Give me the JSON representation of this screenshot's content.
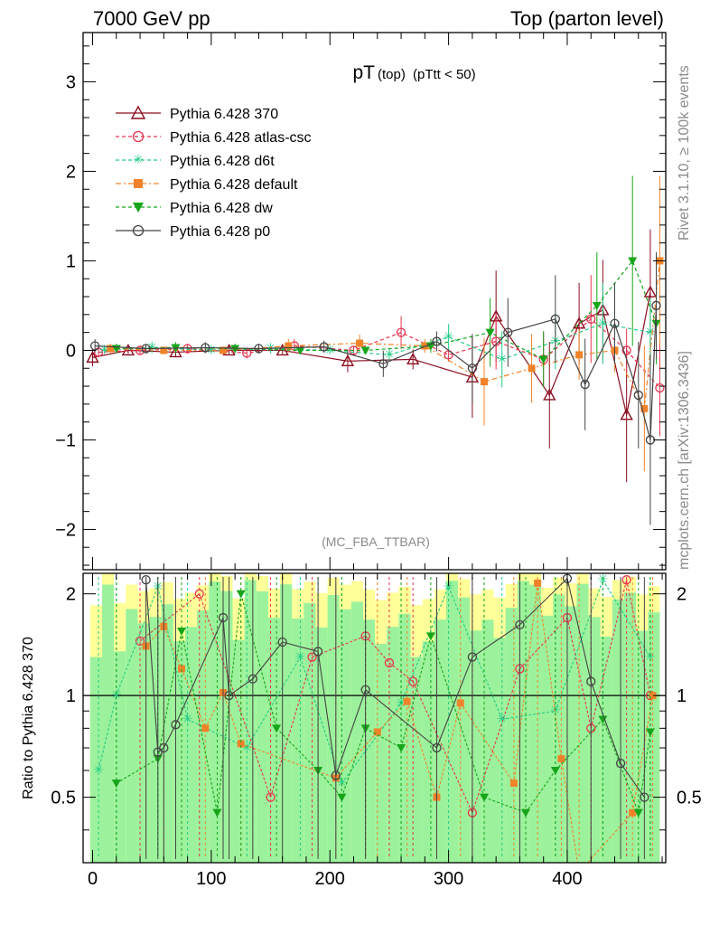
{
  "header": {
    "left": "7000 GeV pp",
    "right": "Top (parton level)"
  },
  "title": {
    "main": "pT",
    "sub1": "(top)",
    "sub2": "(pTtt < 50)"
  },
  "watermark": "(MC_FBA_TTBAR)",
  "side_text": {
    "rivet": "Rivet 3.1.10, ≥ 100k events",
    "mcplots": "mcplots.cern.ch [arXiv:1306.3436]"
  },
  "ratio_ylabel": "Ratio to Pythia 6.428 370",
  "colors": {
    "band_green": "#9cf29c",
    "band_yellow": "#ffff99"
  },
  "chart_data": [
    {
      "type": "line",
      "panel": "main",
      "xlim": [
        -8,
        483
      ],
      "ylim": [
        -2.45,
        3.55
      ],
      "yticks": [
        -2,
        -1,
        0,
        1,
        2,
        3
      ],
      "ytick_labels": [
        "−2",
        "−1",
        "0",
        "1",
        "2",
        "3"
      ],
      "legend_position": "top-left",
      "series": [
        {
          "name": "Pythia 6.428 370",
          "color": "#8b0d1f",
          "marker": "triangle-open",
          "dash": "solid",
          "x": [
            0,
            30,
            70,
            115,
            160,
            215,
            270,
            320,
            340,
            385,
            410,
            430,
            450,
            470
          ],
          "y": [
            -0.08,
            0.0,
            -0.02,
            0.0,
            0.0,
            -0.12,
            -0.1,
            -0.3,
            0.38,
            -0.5,
            0.3,
            0.45,
            -0.72,
            0.65
          ]
        },
        {
          "name": "Pythia 6.428 atlas-csc",
          "color": "#e8334f",
          "marker": "circle-open",
          "dash": "dashed",
          "x": [
            5,
            40,
            80,
            130,
            170,
            220,
            260,
            300,
            340,
            380,
            420,
            450,
            478
          ],
          "y": [
            -0.02,
            0.0,
            0.02,
            -0.03,
            0.05,
            0.0,
            0.2,
            -0.05,
            0.1,
            -0.1,
            0.35,
            0.0,
            -0.42
          ]
        },
        {
          "name": "Pythia 6.428 d6t",
          "color": "#22cc88",
          "marker": "star",
          "dash": "dashed",
          "x": [
            10,
            50,
            100,
            150,
            200,
            250,
            300,
            345,
            390,
            430,
            470
          ],
          "y": [
            0.0,
            0.03,
            0.0,
            0.02,
            0.0,
            -0.05,
            0.15,
            -0.1,
            0.1,
            0.3,
            0.2
          ]
        },
        {
          "name": "Pythia 6.428 default",
          "color": "#f0832a",
          "marker": "square",
          "dash": "dashdot",
          "x": [
            15,
            60,
            110,
            165,
            225,
            280,
            330,
            370,
            410,
            440,
            465,
            478
          ],
          "y": [
            0.02,
            0.0,
            0.0,
            0.05,
            0.08,
            0.05,
            -0.35,
            -0.2,
            -0.05,
            0.0,
            -0.65,
            1.0
          ]
        },
        {
          "name": "Pythia 6.428 dw",
          "color": "#17a51a",
          "marker": "triangle-down",
          "dash": "dashed",
          "x": [
            20,
            70,
            120,
            175,
            230,
            285,
            335,
            380,
            425,
            455,
            475
          ],
          "y": [
            0.02,
            0.03,
            0.02,
            0.0,
            0.0,
            0.05,
            0.2,
            -0.1,
            0.5,
            1.0,
            0.3
          ]
        },
        {
          "name": "Pythia 6.428 p0",
          "color": "#444444",
          "marker": "circle-open",
          "dash": "solid",
          "x": [
            2,
            45,
            95,
            140,
            195,
            245,
            290,
            320,
            350,
            390,
            415,
            440,
            460,
            470,
            475
          ],
          "y": [
            0.05,
            0.02,
            0.03,
            0.02,
            0.04,
            -0.15,
            0.1,
            -0.2,
            0.2,
            0.35,
            -0.38,
            0.3,
            -0.5,
            -1.0,
            0.5
          ]
        }
      ]
    },
    {
      "type": "line",
      "panel": "ratio",
      "ylabel": "Ratio to Pythia 6.428 370",
      "xlim": [
        -8,
        483
      ],
      "ylim": [
        0.32,
        2.3
      ],
      "xticks": [
        0,
        100,
        200,
        300,
        400
      ],
      "yticks": [
        0.5,
        1,
        2
      ],
      "ytick_labels": [
        "0.5",
        "1",
        "2"
      ],
      "reference_line": 1,
      "series": [
        {
          "name": "Pythia 6.428 atlas-csc",
          "color": "#e8334f",
          "marker": "circle-open",
          "x": [
            40,
            90,
            150,
            185,
            230,
            250,
            270,
            320,
            360,
            400,
            420,
            450,
            470
          ],
          "y": [
            1.45,
            2.0,
            0.5,
            1.3,
            1.5,
            1.25,
            1.1,
            0.45,
            1.2,
            1.7,
            0.8,
            2.2,
            1.0
          ]
        },
        {
          "name": "Pythia 6.428 d6t",
          "color": "#22cc88",
          "marker": "star",
          "x": [
            5,
            20,
            55,
            80,
            130,
            175,
            210,
            260,
            300,
            345,
            390,
            430,
            470
          ],
          "y": [
            0.6,
            1.0,
            2.1,
            0.85,
            0.7,
            1.3,
            0.55,
            0.95,
            2.1,
            0.85,
            0.9,
            2.2,
            1.3
          ]
        },
        {
          "name": "Pythia 6.428 default",
          "color": "#f0832a",
          "marker": "square",
          "x": [
            45,
            60,
            75,
            95,
            110,
            125,
            205,
            240,
            265,
            290,
            310,
            355,
            375,
            395,
            410,
            455,
            472
          ],
          "y": [
            1.4,
            1.6,
            1.2,
            0.8,
            1.02,
            0.72,
            0.57,
            0.78,
            0.96,
            0.5,
            0.95,
            0.55,
            2.15,
            0.65,
            0.3,
            0.45,
            1.0
          ]
        },
        {
          "name": "Pythia 6.428 dw",
          "color": "#17a51a",
          "marker": "triangle-down",
          "x": [
            20,
            55,
            75,
            105,
            125,
            155,
            190,
            210,
            230,
            260,
            285,
            330,
            365,
            390,
            430,
            460,
            470
          ],
          "y": [
            0.55,
            0.65,
            1.55,
            0.45,
            2.0,
            0.8,
            0.6,
            0.5,
            0.8,
            0.7,
            1.5,
            0.5,
            0.45,
            0.6,
            0.85,
            0.45,
            0.78
          ]
        },
        {
          "name": "Pythia 6.428 p0",
          "color": "#444444",
          "marker": "circle-open",
          "x": [
            45,
            55,
            60,
            70,
            110,
            115,
            135,
            160,
            190,
            205,
            230,
            290,
            320,
            360,
            400,
            420,
            445,
            465
          ],
          "y": [
            2.2,
            0.68,
            0.7,
            0.82,
            1.7,
            1.0,
            1.12,
            1.44,
            1.35,
            0.58,
            1.04,
            0.7,
            1.3,
            1.62,
            2.22,
            1.1,
            0.63,
            0.5
          ]
        }
      ]
    }
  ]
}
